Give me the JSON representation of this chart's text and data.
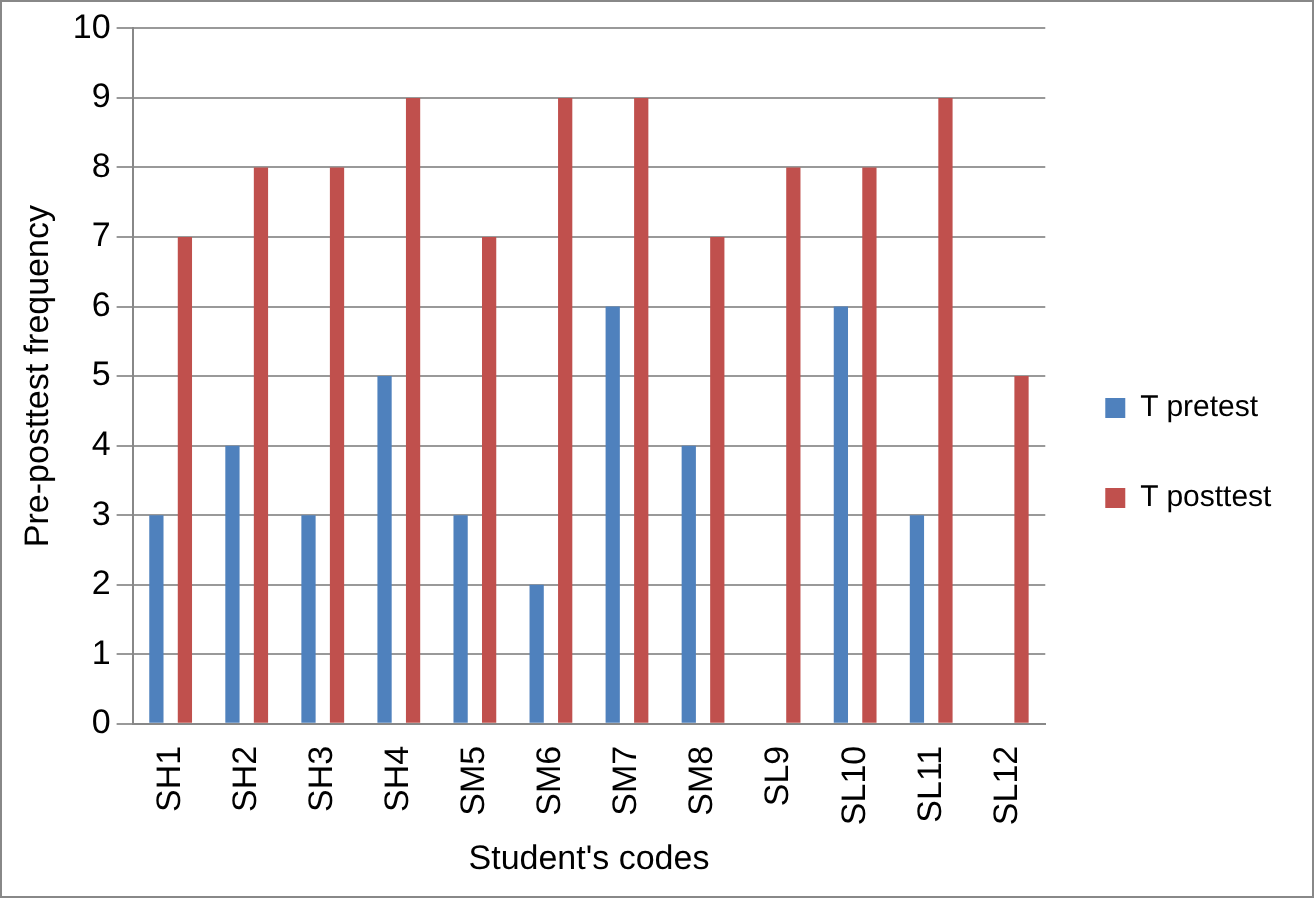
{
  "chart_data": {
    "type": "bar",
    "xlabel": "Student's codes",
    "ylabel": "Pre-posttest frequency",
    "categories": [
      "SH1",
      "SH2",
      "SH3",
      "SH4",
      "SM5",
      "SM6",
      "SM7",
      "SM8",
      "SL9",
      "SL10",
      "SL11",
      "SL12"
    ],
    "series": [
      {
        "name": "T pretest",
        "color": "#4f81bd",
        "values": [
          3,
          4,
          3,
          5,
          3,
          2,
          6,
          4,
          0,
          6,
          3,
          0
        ]
      },
      {
        "name": "T posttest",
        "color": "#c0504d",
        "values": [
          7,
          8,
          8,
          9,
          7,
          9,
          9,
          7,
          8,
          8,
          9,
          5
        ]
      }
    ],
    "ylim": [
      0,
      10
    ],
    "yticks": [
      0,
      1,
      2,
      3,
      4,
      5,
      6,
      7,
      8,
      9,
      10
    ],
    "grid": "y",
    "legend": "right"
  }
}
